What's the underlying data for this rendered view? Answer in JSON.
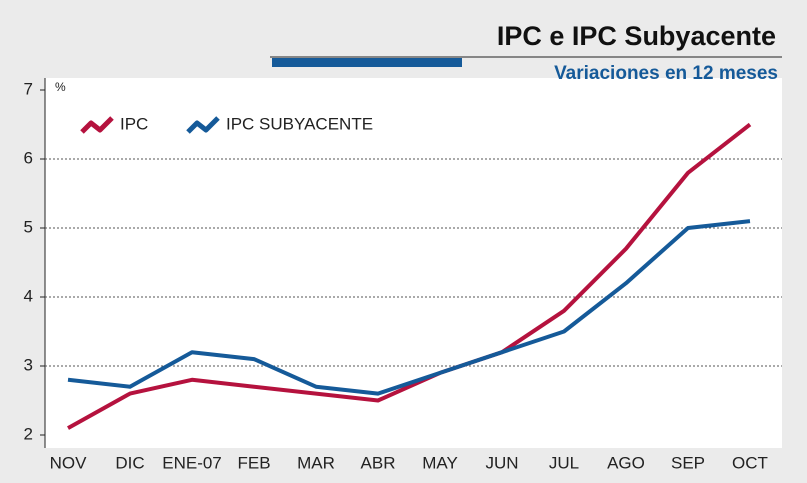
{
  "chart_data": {
    "type": "line",
    "title": "IPC e IPC Subyacente",
    "subtitle": "Variaciones en 12 meses",
    "y_label": "%",
    "categories": [
      "NOV",
      "DIC",
      "ENE-07",
      "FEB",
      "MAR",
      "ABR",
      "MAY",
      "JUN",
      "JUL",
      "AGO",
      "SEP",
      "OCT"
    ],
    "series": [
      {
        "name": "IPC",
        "color": "#b5123e",
        "values": [
          2.1,
          2.6,
          2.8,
          2.7,
          2.6,
          2.5,
          2.9,
          3.2,
          3.8,
          4.7,
          5.8,
          6.5
        ]
      },
      {
        "name": "IPC SUBYACENTE",
        "color": "#155a99",
        "values": [
          2.8,
          2.7,
          3.2,
          3.1,
          2.7,
          2.6,
          2.9,
          3.2,
          3.5,
          4.2,
          5.0,
          5.1
        ]
      }
    ],
    "ylim": [
      2,
      7
    ],
    "yticks": [
      2,
      3,
      4,
      5,
      6,
      7
    ],
    "grid": true,
    "legend": "top-left"
  }
}
